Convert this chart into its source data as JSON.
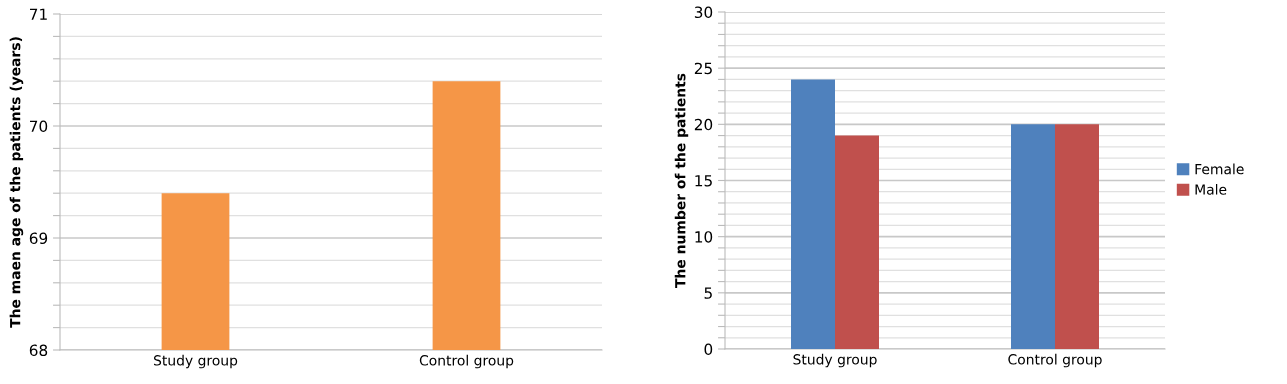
{
  "chart_data": [
    {
      "type": "bar",
      "ylabel": "The maen age of the patients (years)",
      "categories": [
        "Study group",
        "Control group"
      ],
      "series": [
        {
          "color": "#f59647",
          "values": [
            69.4,
            70.4
          ]
        }
      ],
      "ylim": [
        68,
        71
      ],
      "yticks": [
        68,
        {
          "value": 68.2,
          "label": null
        },
        {
          "value": 68.4,
          "label": null
        },
        {
          "value": 68.6,
          "label": null
        },
        {
          "value": 68.8,
          "label": null
        },
        69,
        {
          "value": 69.2,
          "label": null
        },
        {
          "value": 69.4,
          "label": null
        },
        {
          "value": 69.6,
          "label": null
        },
        {
          "value": 69.8,
          "label": null
        },
        70,
        {
          "value": 70.2,
          "label": null
        },
        {
          "value": 70.4,
          "label": null
        },
        {
          "value": 70.6,
          "label": null
        },
        {
          "value": 70.8,
          "label": null
        },
        71
      ],
      "grid": "y",
      "legend": false
    },
    {
      "type": "bar",
      "ylabel": "The number of the patients",
      "categories": [
        "Study group",
        "Control group"
      ],
      "series": [
        {
          "name": "Female",
          "color": "#4f81bd",
          "values": [
            24,
            20
          ]
        },
        {
          "name": "Male",
          "color": "#c0504d",
          "values": [
            19,
            20
          ]
        }
      ],
      "ylim": [
        0,
        30
      ],
      "yticks": [
        0,
        {
          "value": 1,
          "label": null
        },
        {
          "value": 2,
          "label": null
        },
        {
          "value": 3,
          "label": null
        },
        {
          "value": 4,
          "label": null
        },
        5,
        {
          "value": 6,
          "label": null
        },
        {
          "value": 7,
          "label": null
        },
        {
          "value": 8,
          "label": null
        },
        {
          "value": 9,
          "label": null
        },
        10,
        {
          "value": 11,
          "label": null
        },
        {
          "value": 12,
          "label": null
        },
        {
          "value": 13,
          "label": null
        },
        {
          "value": 14,
          "label": null
        },
        15,
        {
          "value": 16,
          "label": null
        },
        {
          "value": 17,
          "label": null
        },
        {
          "value": 18,
          "label": null
        },
        {
          "value": 19,
          "label": null
        },
        20,
        {
          "value": 21,
          "label": null
        },
        {
          "value": 22,
          "label": null
        },
        {
          "value": 23,
          "label": null
        },
        {
          "value": 24,
          "label": null
        },
        25,
        {
          "value": 26,
          "label": null
        },
        {
          "value": 27,
          "label": null
        },
        {
          "value": 28,
          "label": null
        },
        {
          "value": 29,
          "label": null
        },
        30
      ],
      "grid": "y",
      "legend": "right"
    }
  ]
}
